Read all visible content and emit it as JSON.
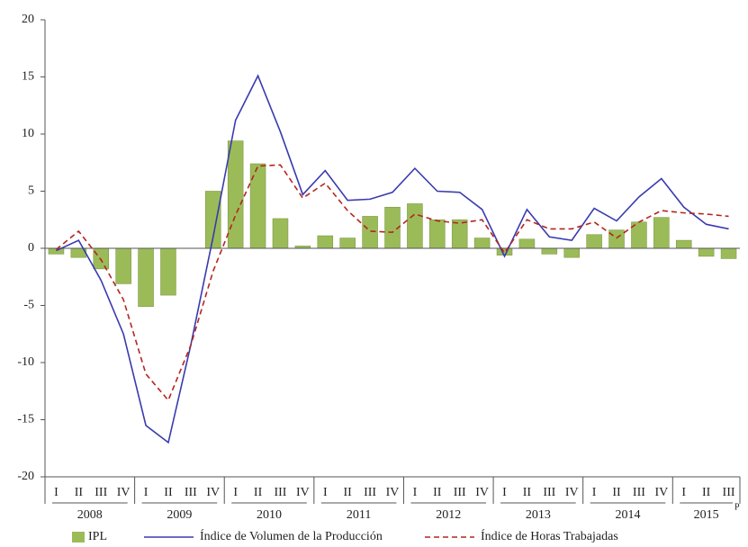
{
  "chart_data": {
    "type": "combo",
    "categories": [
      "I",
      "II",
      "III",
      "IV",
      "I",
      "II",
      "III",
      "IV",
      "I",
      "II",
      "III",
      "IV",
      "I",
      "II",
      "III",
      "IV",
      "I",
      "II",
      "III",
      "IV",
      "I",
      "II",
      "III",
      "IV",
      "I",
      "II",
      "III",
      "IV",
      "I",
      "II",
      "III"
    ],
    "years": [
      "2008",
      "2009",
      "2010",
      "2011",
      "2012",
      "2013",
      "2014",
      "2015"
    ],
    "year_note": "P",
    "ylim": [
      -20,
      20
    ],
    "yticks": [
      -20,
      -15,
      -10,
      -5,
      0,
      5,
      10,
      15,
      20
    ],
    "series": [
      {
        "name": "IPL",
        "type": "bar",
        "color": "#9bbb59",
        "values": [
          -0.5,
          -0.8,
          -1.8,
          -3.1,
          -5.1,
          -4.1,
          0,
          5.0,
          9.4,
          7.4,
          2.6,
          0.2,
          1.1,
          0.9,
          2.8,
          3.6,
          3.9,
          2.5,
          2.5,
          0.9,
          -0.6,
          0.8,
          -0.5,
          -0.8,
          1.2,
          1.6,
          2.3,
          2.7,
          0.7,
          -0.7,
          -0.9
        ]
      },
      {
        "name": "Índice de Volumen de la Producción",
        "type": "line",
        "color": "#3a3ab0",
        "values": [
          -0.2,
          0.7,
          -2.8,
          -7.5,
          -15.5,
          -17,
          -8.5,
          1.0,
          11.2,
          15.1,
          10.2,
          4.7,
          6.8,
          4.2,
          4.3,
          4.9,
          7.0,
          5.0,
          4.9,
          3.4,
          -0.7,
          3.4,
          1.0,
          0.7,
          3.5,
          2.4,
          4.5,
          6.1,
          3.6,
          2.1,
          1.7
        ]
      },
      {
        "name": "Índice de Horas Trabajadas",
        "type": "dashed",
        "color": "#b3261e",
        "values": [
          -0.1,
          1.5,
          -1.0,
          -4.5,
          -11,
          -13.3,
          -8.5,
          -2,
          2.9,
          7.2,
          7.3,
          4.4,
          5.7,
          3.3,
          1.5,
          1.4,
          3.0,
          2.4,
          2.2,
          2.5,
          -0.4,
          2.5,
          1.7,
          1.7,
          2.3,
          0.9,
          2.3,
          3.3,
          3.1,
          3.0,
          2.8
        ]
      }
    ]
  }
}
